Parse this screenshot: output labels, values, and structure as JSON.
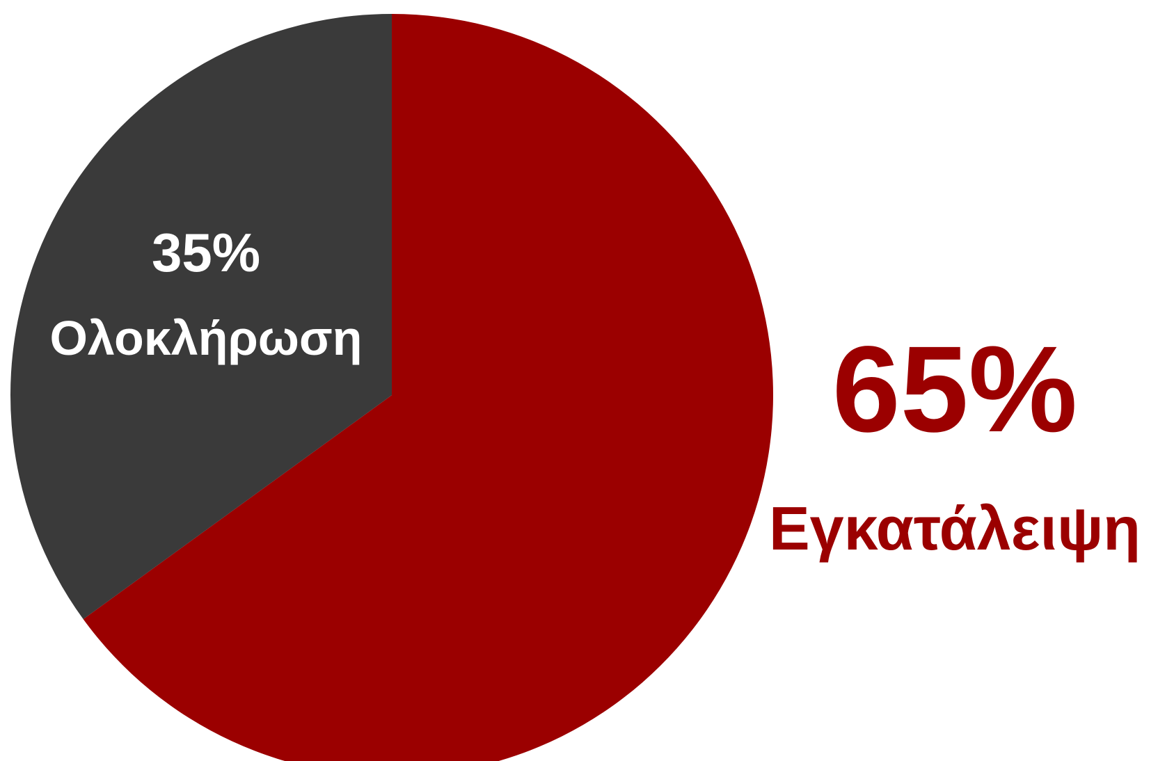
{
  "chart_data": {
    "type": "pie",
    "start": "top",
    "direction": "clockwise",
    "slices": [
      {
        "label": "Εγκατάλειψη",
        "value": 65,
        "value_text": "65%",
        "color": "#9b0000",
        "label_color": "#9b0000",
        "label_placement": "outside-right"
      },
      {
        "label": "Ολοκλήρωση",
        "value": 35,
        "value_text": "35%",
        "color": "#3a3a3a",
        "label_color": "#ffffff",
        "label_placement": "inside"
      }
    ]
  }
}
